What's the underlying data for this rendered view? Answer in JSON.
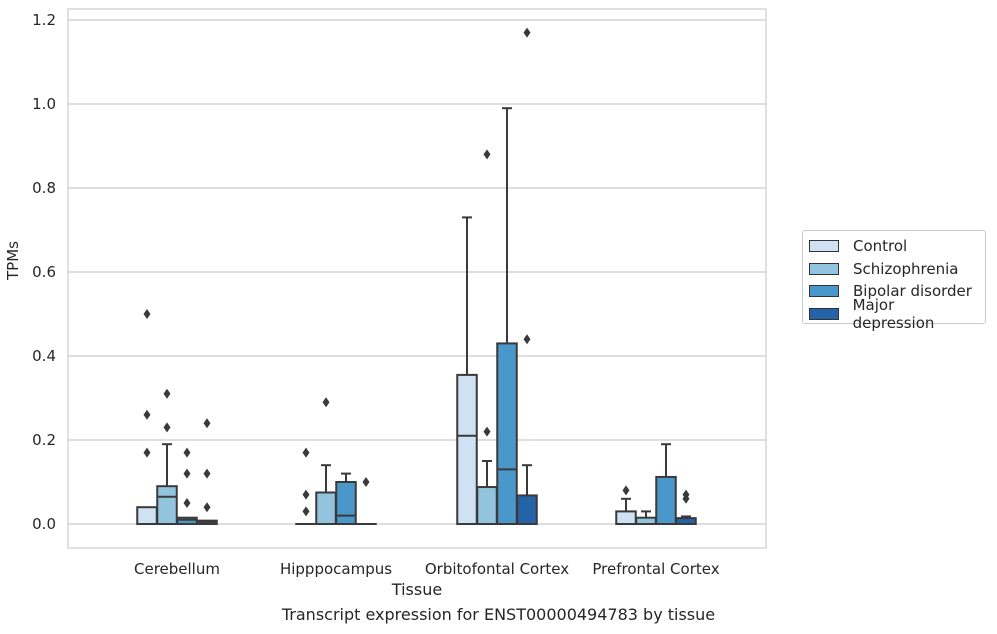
{
  "caption": "Transcript expression for ENST00000494783 by tissue",
  "chart_data": {
    "type": "box",
    "xlabel": "Tissue",
    "ylabel": "TPMs",
    "ylim": [
      -0.06,
      1.23
    ],
    "yticks": [
      "0.0",
      "0.2",
      "0.4",
      "0.6",
      "0.8",
      "1.0",
      "1.2"
    ],
    "grid": true,
    "legend_position": "right",
    "categories": [
      "Cerebellum",
      "Hipppocampus",
      "Orbitofontal Cortex",
      "Prefrontal Cortex"
    ],
    "series": [
      {
        "name": "Control",
        "color": "#cfe1f2",
        "boxes": [
          {
            "q1": 0.0,
            "median": 0.0,
            "q3": 0.04,
            "wlo": 0.0,
            "whi": 0.04,
            "outliers": [
              0.5,
              0.26,
              0.17
            ]
          },
          {
            "q1": 0.0,
            "median": 0.0,
            "q3": 0.0,
            "wlo": 0.0,
            "whi": 0.0,
            "outliers": [
              0.17,
              0.07,
              0.03
            ]
          },
          {
            "q1": 0.0,
            "median": 0.21,
            "q3": 0.355,
            "wlo": 0.0,
            "whi": 0.73,
            "outliers": []
          },
          {
            "q1": 0.0,
            "median": 0.0,
            "q3": 0.03,
            "wlo": 0.0,
            "whi": 0.06,
            "outliers": [
              0.08
            ]
          }
        ]
      },
      {
        "name": "Schizophrenia",
        "color": "#93c4de",
        "boxes": [
          {
            "q1": 0.0,
            "median": 0.065,
            "q3": 0.09,
            "wlo": 0.0,
            "whi": 0.19,
            "outliers": [
              0.31,
              0.23
            ]
          },
          {
            "q1": 0.0,
            "median": 0.0,
            "q3": 0.075,
            "wlo": 0.0,
            "whi": 0.14,
            "outliers": [
              0.29
            ]
          },
          {
            "q1": 0.0,
            "median": 0.0,
            "q3": 0.088,
            "wlo": 0.0,
            "whi": 0.15,
            "outliers": [
              0.88,
              0.22
            ]
          },
          {
            "q1": 0.0,
            "median": 0.0,
            "q3": 0.015,
            "wlo": 0.0,
            "whi": 0.03,
            "outliers": []
          }
        ]
      },
      {
        "name": "Bipolar disorder",
        "color": "#4a98c9",
        "boxes": [
          {
            "q1": 0.0,
            "median": 0.01,
            "q3": 0.015,
            "wlo": 0.0,
            "whi": 0.015,
            "outliers": [
              0.17,
              0.12,
              0.05
            ]
          },
          {
            "q1": 0.0,
            "median": 0.02,
            "q3": 0.1,
            "wlo": 0.0,
            "whi": 0.12,
            "outliers": []
          },
          {
            "q1": 0.0,
            "median": 0.13,
            "q3": 0.43,
            "wlo": 0.0,
            "whi": 0.99,
            "outliers": []
          },
          {
            "q1": 0.0,
            "median": 0.0,
            "q3": 0.112,
            "wlo": 0.0,
            "whi": 0.19,
            "outliers": []
          }
        ]
      },
      {
        "name": "Major depression",
        "color": "#2563a8",
        "boxes": [
          {
            "q1": 0.0,
            "median": 0.005,
            "q3": 0.008,
            "wlo": 0.0,
            "whi": 0.008,
            "outliers": [
              0.24,
              0.12,
              0.04
            ]
          },
          {
            "q1": 0.0,
            "median": 0.0,
            "q3": 0.0,
            "wlo": 0.0,
            "whi": 0.0,
            "outliers": [
              0.1
            ]
          },
          {
            "q1": 0.0,
            "median": 0.0,
            "q3": 0.068,
            "wlo": 0.0,
            "whi": 0.14,
            "outliers": [
              1.17,
              0.44
            ]
          },
          {
            "q1": 0.0,
            "median": 0.0,
            "q3": 0.014,
            "wlo": 0.0,
            "whi": 0.018,
            "outliers": [
              0.07,
              0.06
            ]
          }
        ]
      }
    ]
  }
}
